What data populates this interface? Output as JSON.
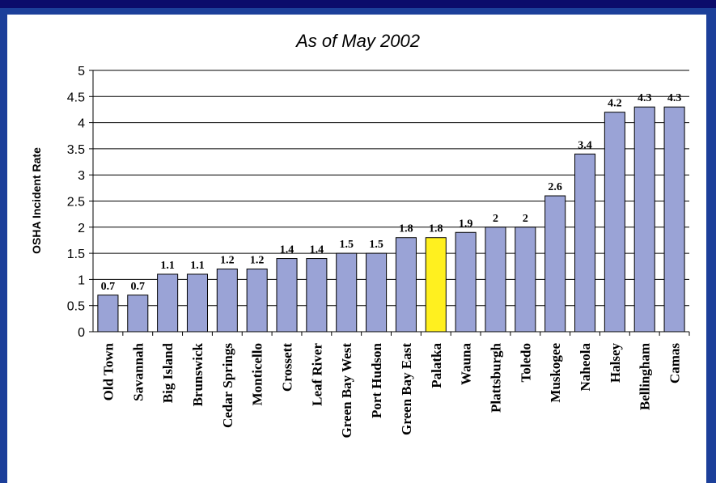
{
  "chart_data": {
    "type": "bar",
    "title": "As of May 2002",
    "ylabel": "OSHA Incident Rate",
    "xlabel": "",
    "ylim": [
      0,
      5
    ],
    "yticks": [
      "0",
      "0.5",
      "1",
      "1.5",
      "2",
      "2.5",
      "3",
      "3.5",
      "4",
      "4.5",
      "5"
    ],
    "grid": true,
    "bar_color": "#9aa3d6",
    "highlight_color": "#fff01f",
    "highlight_category": "Palatka",
    "categories": [
      "Old Town",
      "Savannah",
      "Big Island",
      "Brunswick",
      "Cedar Springs",
      "Monticello",
      "Crossett",
      "Leaf River",
      "Green Bay West",
      "Port Hudson",
      "Green Bay East",
      "Palatka",
      "Wauna",
      "Plattsburgh",
      "Toledo",
      "Muskogee",
      "Naheola",
      "Halsey",
      "Bellingham",
      "Camas"
    ],
    "values": [
      0.7,
      0.7,
      1.1,
      1.1,
      1.2,
      1.2,
      1.4,
      1.4,
      1.5,
      1.5,
      1.8,
      1.8,
      1.9,
      2,
      2,
      2.6,
      3.4,
      4.2,
      4.3,
      4.3
    ],
    "value_labels": [
      "0.7",
      "0.7",
      "1.1",
      "1.1",
      "1.2",
      "1.2",
      "1.4",
      "1.4",
      "1.5",
      "1.5",
      "1.8",
      "1.8",
      "1.9",
      "2",
      "2",
      "2.6",
      "3.4",
      "4.2",
      "4.3",
      "4.3"
    ]
  }
}
